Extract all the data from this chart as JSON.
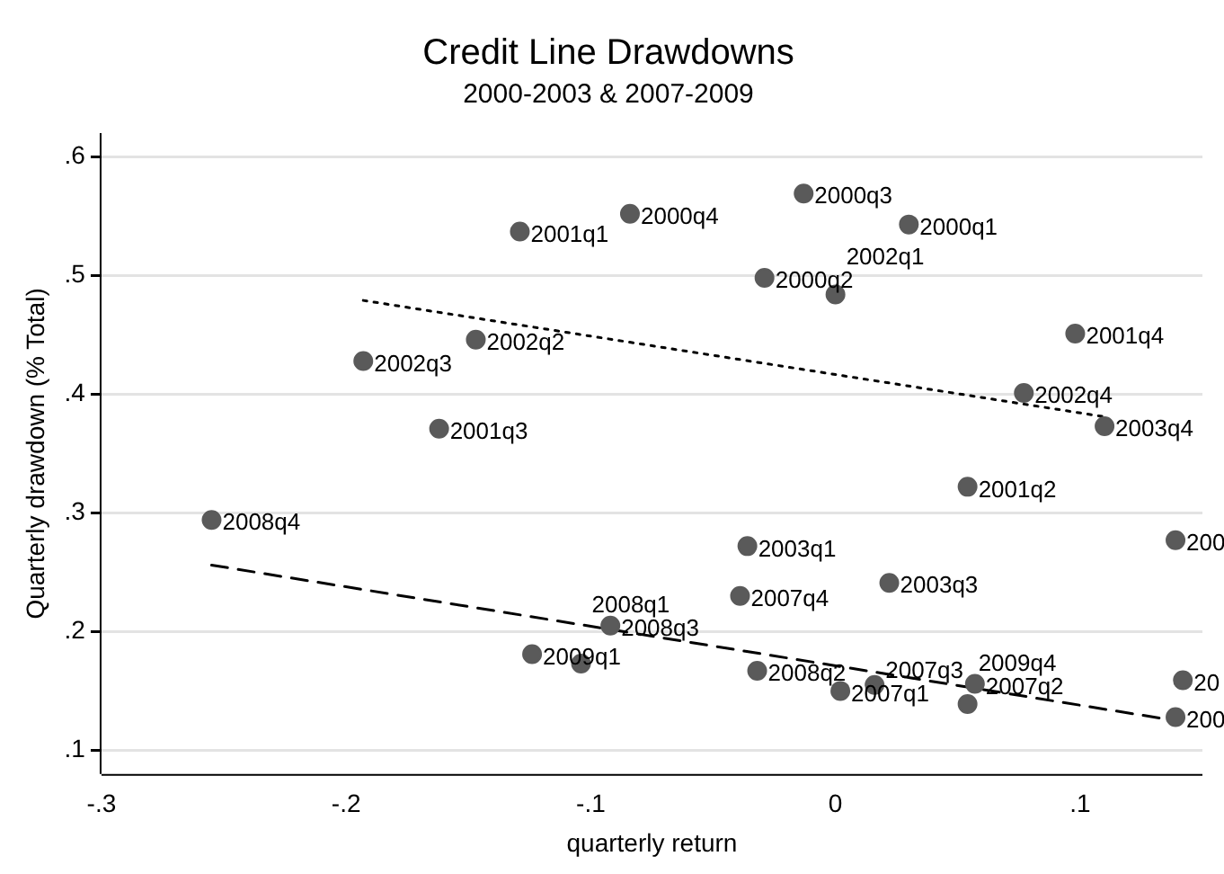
{
  "chart_data": {
    "type": "scatter",
    "title": "Credit Line Drawdowns",
    "subtitle": "2000-2003 & 2007-2009",
    "xlabel": "quarterly return",
    "ylabel": "Quarterly drawdown (% Total)",
    "xlim": [
      -0.3,
      0.15
    ],
    "xticks": [
      {
        "value": -0.3,
        "label": "-.3"
      },
      {
        "value": -0.2,
        "label": "-.2"
      },
      {
        "value": -0.1,
        "label": "-.1"
      },
      0,
      {
        "value": 0.1,
        "label": ".1"
      }
    ],
    "ylim": [
      0.08,
      0.62
    ],
    "yticks": [
      {
        "value": 0.1,
        "label": ".1"
      },
      {
        "value": 0.2,
        "label": ".2"
      },
      {
        "value": 0.3,
        "label": ".3"
      },
      {
        "value": 0.4,
        "label": ".4"
      },
      {
        "value": 0.5,
        "label": ".5"
      },
      {
        "value": 0.6,
        "label": ".6"
      }
    ],
    "grid": "y",
    "legend": false,
    "marker": "circle",
    "series": [
      {
        "color": "#5a5a5a",
        "x": [
          -0.013,
          -0.084,
          -0.129,
          0.03,
          -0.029,
          0.0,
          0.098,
          0.077,
          0.11,
          -0.147,
          -0.193,
          -0.162,
          -0.255,
          0.054,
          0.139,
          -0.036,
          -0.039,
          0.022,
          -0.092,
          -0.124,
          -0.104,
          -0.032,
          0.002,
          0.016,
          0.057,
          0.054,
          0.142,
          0.139
        ],
        "values": [
          0.569,
          0.552,
          0.537,
          0.543,
          0.498,
          0.484,
          0.451,
          0.401,
          0.373,
          0.446,
          0.428,
          0.371,
          0.294,
          0.322,
          0.277,
          0.272,
          0.23,
          0.241,
          0.205,
          0.181,
          0.173,
          0.167,
          0.15,
          0.155,
          0.156,
          0.139,
          0.159,
          0.128
        ]
      },
      {
        "type": "line",
        "color": "#000000",
        "line_style": "dotted",
        "marker": "none",
        "x": [
          -0.193,
          0.11
        ],
        "values": [
          0.479,
          0.381
        ]
      },
      {
        "type": "line",
        "color": "#000000",
        "line_style": "dashed",
        "marker": "none",
        "x": [
          -0.255,
          0.139
        ],
        "values": [
          0.256,
          0.125
        ]
      }
    ],
    "annotations": [
      {
        "text": "2000q3",
        "x": -0.013,
        "y": 0.569
      },
      {
        "text": "2000q4",
        "x": -0.084,
        "y": 0.552
      },
      {
        "text": "2001q1",
        "x": -0.129,
        "y": 0.537
      },
      {
        "text": "2000q1",
        "x": 0.03,
        "y": 0.543
      },
      {
        "text": "2000q2",
        "x": -0.029,
        "y": 0.498
      },
      {
        "text": "2002q1",
        "x": 0.0,
        "y": 0.484
      },
      {
        "text": "2001q4",
        "x": 0.098,
        "y": 0.451
      },
      {
        "text": "2002q4",
        "x": 0.077,
        "y": 0.401
      },
      {
        "text": "2003q4",
        "x": 0.11,
        "y": 0.373
      },
      {
        "text": "2002q2",
        "x": -0.147,
        "y": 0.446
      },
      {
        "text": "2002q3",
        "x": -0.193,
        "y": 0.428
      },
      {
        "text": "2001q3",
        "x": -0.162,
        "y": 0.371
      },
      {
        "text": "2008q4",
        "x": -0.255,
        "y": 0.294
      },
      {
        "text": "2001q2",
        "x": 0.054,
        "y": 0.322
      },
      {
        "text": "200",
        "x": 0.139,
        "y": 0.277
      },
      {
        "text": "2003q1",
        "x": -0.036,
        "y": 0.272
      },
      {
        "text": "2007q4",
        "x": -0.039,
        "y": 0.23
      },
      {
        "text": "2003q3",
        "x": 0.022,
        "y": 0.241
      },
      {
        "text": "2008q3",
        "x": -0.092,
        "y": 0.205
      },
      {
        "text": "2009q1",
        "x": -0.124,
        "y": 0.181
      },
      {
        "text": "2008q1",
        "x": -0.104,
        "y": 0.173
      },
      {
        "text": "2008q2",
        "x": -0.032,
        "y": 0.167
      },
      {
        "text": "2007q1",
        "x": 0.002,
        "y": 0.15
      },
      {
        "text": "2007q3",
        "x": 0.016,
        "y": 0.155
      },
      {
        "text": "2007q2",
        "x": 0.057,
        "y": 0.156
      },
      {
        "text": "2009q4",
        "x": 0.054,
        "y": 0.139
      },
      {
        "text": "20",
        "x": 0.142,
        "y": 0.159
      },
      {
        "text": "200",
        "x": 0.139,
        "y": 0.128
      }
    ]
  }
}
